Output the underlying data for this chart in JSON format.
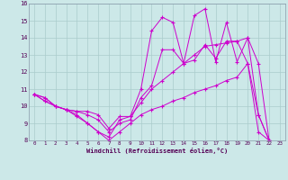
{
  "xlabel": "Windchill (Refroidissement éolien,°C)",
  "background_color": "#cce8e8",
  "line_color": "#cc00cc",
  "grid_color": "#aacccc",
  "xlim": [
    -0.5,
    23.5
  ],
  "ylim": [
    8,
    16
  ],
  "xticks": [
    0,
    1,
    2,
    3,
    4,
    5,
    6,
    7,
    8,
    9,
    10,
    11,
    12,
    13,
    14,
    15,
    16,
    17,
    18,
    19,
    20,
    21,
    22,
    23
  ],
  "yticks": [
    8,
    9,
    10,
    11,
    12,
    13,
    14,
    15,
    16
  ],
  "series": [
    [
      10.7,
      10.5,
      10.0,
      9.8,
      9.7,
      9.7,
      9.5,
      8.7,
      9.4,
      9.4,
      11.0,
      14.4,
      15.2,
      14.9,
      12.5,
      15.3,
      15.7,
      12.6,
      14.9,
      12.6,
      14.0,
      9.5,
      8.0,
      7.8
    ],
    [
      10.7,
      10.3,
      10.0,
      9.8,
      9.4,
      9.0,
      8.5,
      8.2,
      9.2,
      9.4,
      10.2,
      11.0,
      11.5,
      12.0,
      12.5,
      13.0,
      13.5,
      13.6,
      13.7,
      13.8,
      12.5,
      8.5,
      8.0,
      7.8
    ],
    [
      10.7,
      10.5,
      10.0,
      9.8,
      9.7,
      9.5,
      9.2,
      8.5,
      9.0,
      9.2,
      10.5,
      11.2,
      13.3,
      13.3,
      12.5,
      12.7,
      13.6,
      12.8,
      13.8,
      13.8,
      14.0,
      12.5,
      8.0,
      7.8
    ],
    [
      10.7,
      10.3,
      10.0,
      9.8,
      9.5,
      9.0,
      8.5,
      8.0,
      8.5,
      9.0,
      9.5,
      9.8,
      10.0,
      10.3,
      10.5,
      10.8,
      11.0,
      11.2,
      11.5,
      11.7,
      12.5,
      9.5,
      8.0,
      7.8
    ]
  ]
}
